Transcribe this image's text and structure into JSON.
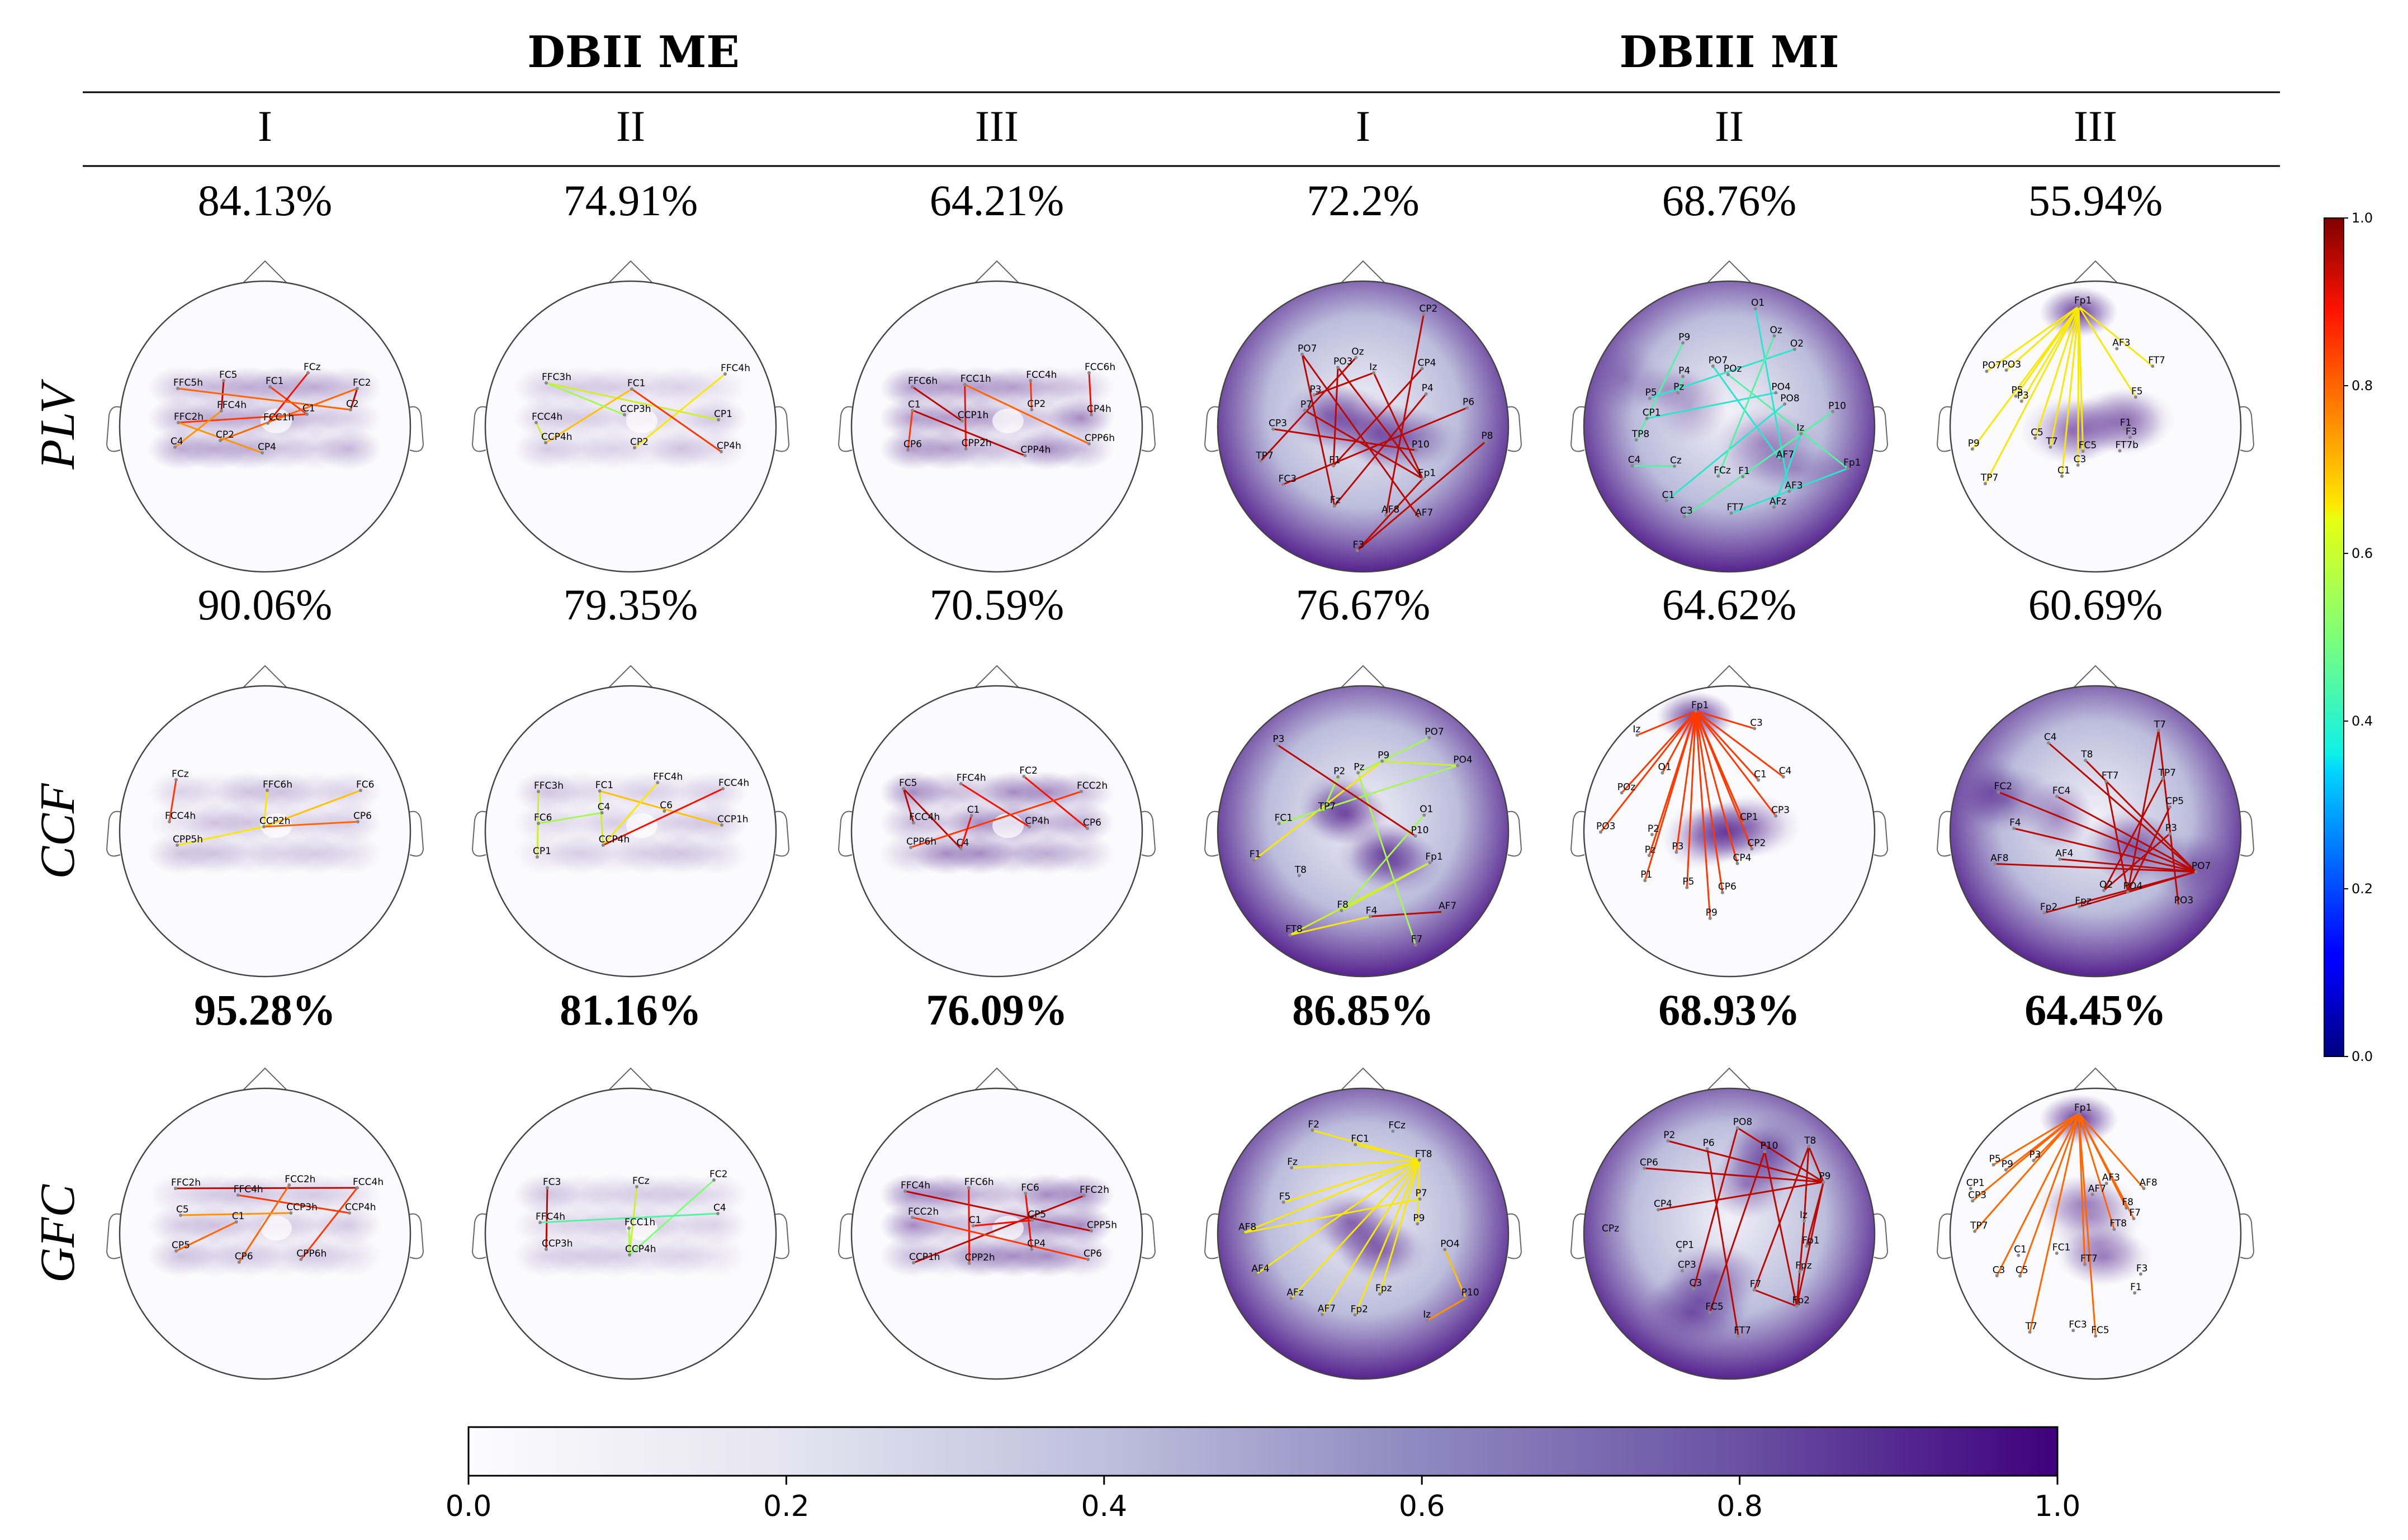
{
  "header": {
    "groups": [
      "DBII ME",
      "DBIII MI"
    ],
    "columns": [
      "I",
      "II",
      "III",
      "I",
      "II",
      "III"
    ]
  },
  "rows": [
    {
      "label": "PLV",
      "accuracies": [
        "84.13%",
        "74.91%",
        "64.21%",
        "72.2%",
        "68.76%",
        "55.94%"
      ],
      "bold": false
    },
    {
      "label": "CCF",
      "accuracies": [
        "90.06%",
        "79.35%",
        "70.59%",
        "76.67%",
        "64.62%",
        "60.69%"
      ],
      "bold": false
    },
    {
      "label": "GFC",
      "accuracies": [
        "95.28%",
        "81.16%",
        "76.09%",
        "86.85%",
        "68.93%",
        "64.45%"
      ],
      "bold": true
    }
  ],
  "colorbar_bottom": {
    "ticks": [
      "0.0",
      "0.2",
      "0.4",
      "0.6",
      "0.8",
      "1.0"
    ],
    "range": [
      0.0,
      1.0
    ],
    "colors": [
      "#fcfbfd",
      "#3f007d"
    ]
  },
  "colorbar_right": {
    "ticks": [
      "0.0",
      "0.2",
      "0.4",
      "0.6",
      "0.8",
      "1.0"
    ],
    "range": [
      0.0,
      1.0
    ],
    "colormap": "jet"
  },
  "panels": [
    {
      "row": 0,
      "col": 0,
      "style": "motor",
      "intensity": 0.75,
      "electrodes": [
        "FFC5h",
        "FC5",
        "FC1",
        "FCz",
        "FC2",
        "FFC2h",
        "FFC4h",
        "FCC1h",
        "C1",
        "C2",
        "C4",
        "CP2",
        "CP4"
      ],
      "edges": [
        [
          1,
          6,
          0.95
        ],
        [
          2,
          8,
          0.85
        ],
        [
          3,
          7,
          0.9
        ],
        [
          4,
          9,
          0.95
        ],
        [
          5,
          8,
          0.85
        ],
        [
          0,
          9,
          0.8
        ],
        [
          6,
          10,
          0.75
        ],
        [
          4,
          11,
          0.8
        ],
        [
          5,
          12,
          0.75
        ]
      ]
    },
    {
      "row": 0,
      "col": 1,
      "style": "motor",
      "intensity": 0.45,
      "electrodes": [
        "FFC3h",
        "FC1",
        "FFC4h",
        "FCC4h",
        "CCP3h",
        "CP1",
        "CCP4h",
        "CP2",
        "CP4h"
      ],
      "edges": [
        [
          0,
          5,
          0.6
        ],
        [
          1,
          6,
          0.7
        ],
        [
          2,
          7,
          0.65
        ],
        [
          3,
          6,
          0.6
        ],
        [
          1,
          8,
          0.85
        ],
        [
          0,
          4,
          0.55
        ]
      ]
    },
    {
      "row": 0,
      "col": 2,
      "style": "motor",
      "intensity": 0.9,
      "electrodes": [
        "FFC6h",
        "FCC1h",
        "FCC4h",
        "FCC6h",
        "C1",
        "CCP1h",
        "CP2",
        "CP4h",
        "CP6",
        "CPP2h",
        "CPP4h",
        "CPP6h"
      ],
      "edges": [
        [
          0,
          5,
          0.95
        ],
        [
          1,
          9,
          0.9
        ],
        [
          2,
          6,
          0.85
        ],
        [
          3,
          7,
          0.9
        ],
        [
          4,
          10,
          0.95
        ],
        [
          1,
          11,
          0.8
        ],
        [
          4,
          8,
          0.85
        ]
      ]
    },
    {
      "row": 0,
      "col": 3,
      "style": "wide",
      "intensity": 0.8,
      "electrodes": [
        "Fp1",
        "AF7",
        "AF8",
        "F3",
        "Fz",
        "F1",
        "FC3",
        "TP7",
        "CP3",
        "P7",
        "P3",
        "PO7",
        "PO3",
        "Oz",
        "Iz",
        "CP2",
        "CP4",
        "P4",
        "P6",
        "P8",
        "P10"
      ],
      "edges": [
        [
          0,
          3,
          0.95
        ],
        [
          0,
          9,
          0.95
        ],
        [
          0,
          12,
          0.95
        ],
        [
          0,
          14,
          0.95
        ],
        [
          5,
          16,
          0.95
        ],
        [
          4,
          17,
          0.95
        ],
        [
          2,
          15,
          0.95
        ],
        [
          7,
          13,
          0.95
        ],
        [
          1,
          11,
          0.95
        ],
        [
          6,
          18,
          0.95
        ],
        [
          3,
          19,
          0.95
        ],
        [
          8,
          20,
          0.95
        ],
        [
          10,
          14,
          0.95
        ],
        [
          5,
          12,
          0.95
        ],
        [
          4,
          11,
          0.95
        ]
      ]
    },
    {
      "row": 0,
      "col": 4,
      "style": "wide",
      "intensity": 0.55,
      "electrodes": [
        "Fp1",
        "AF7",
        "AF3",
        "AFz",
        "F1",
        "FT7",
        "FCz",
        "C3",
        "C1",
        "Cz",
        "C4",
        "TP8",
        "CP1",
        "P5",
        "Pz",
        "P4",
        "P9",
        "PO7",
        "POz",
        "O1",
        "Oz",
        "O2",
        "PO4",
        "PO8",
        "P10",
        "Iz"
      ],
      "edges": [
        [
          0,
          5,
          0.4
        ],
        [
          0,
          18,
          0.45
        ],
        [
          1,
          17,
          0.4
        ],
        [
          2,
          19,
          0.4
        ],
        [
          3,
          25,
          0.4
        ],
        [
          7,
          24,
          0.45
        ],
        [
          8,
          23,
          0.4
        ],
        [
          9,
          10,
          0.45
        ],
        [
          11,
          16,
          0.45
        ],
        [
          12,
          22,
          0.4
        ],
        [
          14,
          15,
          0.45
        ],
        [
          13,
          21,
          0.4
        ],
        [
          6,
          20,
          0.45
        ]
      ]
    },
    {
      "row": 0,
      "col": 5,
      "style": "frontal",
      "intensity": 0.6,
      "electrodes": [
        "Fp1",
        "AF3",
        "FT7",
        "F5",
        "F3",
        "F1",
        "FT7b",
        "FC5",
        "C3",
        "C1",
        "T7",
        "C5",
        "TP7",
        "P9",
        "P5",
        "P3",
        "PO7",
        "PO3"
      ],
      "edges": [
        [
          0,
          2,
          0.65
        ],
        [
          0,
          3,
          0.65
        ],
        [
          0,
          7,
          0.65
        ],
        [
          0,
          10,
          0.65
        ],
        [
          0,
          11,
          0.65
        ],
        [
          0,
          12,
          0.65
        ],
        [
          0,
          13,
          0.65
        ],
        [
          0,
          14,
          0.65
        ],
        [
          0,
          15,
          0.65
        ],
        [
          0,
          16,
          0.65
        ],
        [
          0,
          17,
          0.65
        ],
        [
          0,
          8,
          0.65
        ],
        [
          0,
          9,
          0.65
        ]
      ]
    },
    {
      "row": 1,
      "col": 0,
      "style": "motor",
      "intensity": 0.45,
      "electrodes": [
        "FCz",
        "FFC6h",
        "FC6",
        "FCC4h",
        "CCP2h",
        "CP6",
        "CPP5h"
      ],
      "edges": [
        [
          0,
          3,
          0.85
        ],
        [
          1,
          4,
          0.65
        ],
        [
          2,
          4,
          0.7
        ],
        [
          4,
          5,
          0.8
        ],
        [
          4,
          6,
          0.65
        ]
      ]
    },
    {
      "row": 1,
      "col": 1,
      "style": "motor",
      "intensity": 0.5,
      "electrodes": [
        "FFC3h",
        "FC1",
        "FFC4h",
        "FCC4h",
        "FC6",
        "C4",
        "C6",
        "CCP1h",
        "CP1",
        "CCP4h"
      ],
      "edges": [
        [
          0,
          8,
          0.6
        ],
        [
          1,
          7,
          0.7
        ],
        [
          2,
          9,
          0.65
        ],
        [
          3,
          9,
          0.9
        ],
        [
          4,
          5,
          0.55
        ],
        [
          1,
          9,
          0.6
        ]
      ]
    },
    {
      "row": 1,
      "col": 2,
      "style": "motor",
      "intensity": 0.9,
      "electrodes": [
        "FC5",
        "FFC4h",
        "FC2",
        "FCC2h",
        "FCC4h",
        "C1",
        "CP4h",
        "CP6",
        "CPP6h",
        "C4"
      ],
      "edges": [
        [
          0,
          4,
          0.95
        ],
        [
          0,
          9,
          0.95
        ],
        [
          1,
          6,
          0.9
        ],
        [
          2,
          7,
          0.9
        ],
        [
          3,
          8,
          0.85
        ],
        [
          5,
          9,
          0.9
        ]
      ]
    },
    {
      "row": 1,
      "col": 3,
      "style": "wide",
      "intensity": 0.85,
      "electrodes": [
        "Fp1",
        "AF7",
        "F7",
        "F4",
        "F8",
        "FT8",
        "T8",
        "F1",
        "FC1",
        "TP7",
        "P3",
        "P2",
        "Pz",
        "P9",
        "PO7",
        "PO4",
        "O1",
        "P10"
      ],
      "edges": [
        [
          0,
          5,
          0.6
        ],
        [
          1,
          3,
          0.95
        ],
        [
          2,
          12,
          0.55
        ],
        [
          3,
          5,
          0.65
        ],
        [
          4,
          16,
          0.55
        ],
        [
          7,
          13,
          0.65
        ],
        [
          8,
          15,
          0.55
        ],
        [
          9,
          11,
          0.55
        ],
        [
          10,
          17,
          0.95
        ],
        [
          12,
          14,
          0.55
        ],
        [
          0,
          4,
          0.6
        ],
        [
          13,
          15,
          0.6
        ]
      ]
    },
    {
      "row": 1,
      "col": 4,
      "style": "frontal",
      "intensity": 0.7,
      "electrodes": [
        "Fp1",
        "C3",
        "C1",
        "C4",
        "CP3",
        "CP1",
        "CP2",
        "CP4",
        "CP6",
        "P9",
        "P5",
        "P3",
        "P1",
        "Pz",
        "P2",
        "PO3",
        "POz",
        "O1",
        "Iz"
      ],
      "edges": [
        [
          0,
          1,
          0.85
        ],
        [
          0,
          2,
          0.85
        ],
        [
          0,
          3,
          0.85
        ],
        [
          0,
          4,
          0.85
        ],
        [
          0,
          5,
          0.85
        ],
        [
          0,
          6,
          0.85
        ],
        [
          0,
          7,
          0.85
        ],
        [
          0,
          8,
          0.85
        ],
        [
          0,
          9,
          0.85
        ],
        [
          0,
          10,
          0.85
        ],
        [
          0,
          11,
          0.85
        ],
        [
          0,
          12,
          0.85
        ],
        [
          0,
          13,
          0.85
        ],
        [
          0,
          15,
          0.85
        ],
        [
          0,
          16,
          0.85
        ],
        [
          0,
          17,
          0.85
        ],
        [
          0,
          18,
          0.85
        ]
      ]
    },
    {
      "row": 1,
      "col": 5,
      "style": "wide",
      "intensity": 0.85,
      "electrodes": [
        "Fpz",
        "Fp2",
        "AF4",
        "AF8",
        "F4",
        "FC2",
        "FC4",
        "C4",
        "T8",
        "FT7",
        "T7",
        "TP7",
        "CP5",
        "P3",
        "PO7",
        "PO3",
        "PO4",
        "O2"
      ],
      "edges": [
        [
          14,
          0,
          0.95
        ],
        [
          14,
          1,
          0.95
        ],
        [
          14,
          2,
          0.95
        ],
        [
          14,
          3,
          0.95
        ],
        [
          14,
          4,
          0.95
        ],
        [
          14,
          5,
          0.95
        ],
        [
          14,
          6,
          0.95
        ],
        [
          14,
          7,
          0.95
        ],
        [
          14,
          8,
          0.95
        ],
        [
          9,
          16,
          0.95
        ],
        [
          10,
          15,
          0.95
        ],
        [
          11,
          17,
          0.95
        ],
        [
          12,
          16,
          0.95
        ],
        [
          13,
          17,
          0.95
        ],
        [
          10,
          16,
          0.95
        ]
      ]
    },
    {
      "row": 2,
      "col": 0,
      "style": "motor",
      "intensity": 0.55,
      "electrodes": [
        "FFC2h",
        "FFC4h",
        "FCC2h",
        "FCC4h",
        "C5",
        "C1",
        "CCP3h",
        "CCP4h",
        "CP5",
        "CP6",
        "CPP6h"
      ],
      "edges": [
        [
          0,
          3,
          0.95
        ],
        [
          1,
          7,
          0.85
        ],
        [
          2,
          9,
          0.8
        ],
        [
          4,
          6,
          0.75
        ],
        [
          5,
          8,
          0.8
        ],
        [
          3,
          10,
          0.85
        ]
      ]
    },
    {
      "row": 2,
      "col": 1,
      "style": "motor",
      "intensity": 0.45,
      "electrodes": [
        "FC3",
        "FCz",
        "FC2",
        "FFC4h",
        "FCC1h",
        "C4",
        "CCP3h",
        "CCP4h"
      ],
      "edges": [
        [
          0,
          6,
          0.95
        ],
        [
          1,
          7,
          0.6
        ],
        [
          2,
          7,
          0.5
        ],
        [
          3,
          5,
          0.45
        ],
        [
          4,
          7,
          0.55
        ]
      ]
    },
    {
      "row": 2,
      "col": 2,
      "style": "motor",
      "intensity": 0.9,
      "electrodes": [
        "FFC4h",
        "FFC6h",
        "FC6",
        "FFC2h",
        "FCC2h",
        "C1",
        "CP5",
        "CPP5h",
        "CCP1h",
        "CPP2h",
        "CP4",
        "CP6"
      ],
      "edges": [
        [
          0,
          7,
          0.95
        ],
        [
          1,
          9,
          0.9
        ],
        [
          2,
          10,
          0.9
        ],
        [
          3,
          8,
          0.95
        ],
        [
          4,
          11,
          0.85
        ],
        [
          5,
          6,
          0.9
        ]
      ]
    },
    {
      "row": 2,
      "col": 3,
      "style": "wide",
      "intensity": 0.6,
      "electrodes": [
        "Fpz",
        "Fp2",
        "AF7",
        "AFz",
        "AF4",
        "AF8",
        "F5",
        "Fz",
        "F2",
        "FC1",
        "FCz",
        "FT8",
        "P7",
        "P9",
        "PO4",
        "P10",
        "Iz"
      ],
      "edges": [
        [
          0,
          11,
          0.65
        ],
        [
          1,
          11,
          0.65
        ],
        [
          2,
          11,
          0.65
        ],
        [
          3,
          11,
          0.65
        ],
        [
          4,
          11,
          0.65
        ],
        [
          5,
          11,
          0.65
        ],
        [
          6,
          11,
          0.65
        ],
        [
          7,
          11,
          0.65
        ],
        [
          8,
          11,
          0.65
        ],
        [
          9,
          11,
          0.65
        ],
        [
          13,
          11,
          0.65
        ],
        [
          14,
          15,
          0.7
        ],
        [
          16,
          15,
          0.75
        ],
        [
          12,
          5,
          0.65
        ]
      ]
    },
    {
      "row": 2,
      "col": 4,
      "style": "wide",
      "intensity": 0.95,
      "electrodes": [
        "Fp1",
        "Fpz",
        "Fp2",
        "F7",
        "FT7",
        "FC5",
        "C3",
        "CP3",
        "CP1",
        "CPz",
        "CP4",
        "CP6",
        "P2",
        "P6",
        "PO8",
        "P10",
        "T8",
        "P9",
        "Iz"
      ],
      "edges": [
        [
          17,
          2,
          0.95
        ],
        [
          17,
          16,
          0.95
        ],
        [
          17,
          11,
          0.95
        ],
        [
          17,
          10,
          0.95
        ],
        [
          17,
          12,
          0.95
        ],
        [
          17,
          14,
          0.95
        ],
        [
          2,
          18,
          0.95
        ],
        [
          2,
          15,
          0.95
        ],
        [
          2,
          3,
          0.95
        ],
        [
          3,
          16,
          0.95
        ],
        [
          4,
          13,
          0.95
        ],
        [
          5,
          15,
          0.95
        ],
        [
          6,
          14,
          0.95
        ],
        [
          18,
          16,
          0.95
        ],
        [
          0,
          17,
          0.95
        ]
      ]
    },
    {
      "row": 2,
      "col": 5,
      "style": "frontal",
      "intensity": 0.55,
      "electrodes": [
        "Fp1",
        "AF7",
        "AF3",
        "AF8",
        "F8",
        "FT8",
        "F7",
        "F3",
        "F1",
        "FT7",
        "FC5",
        "FC3",
        "FC1",
        "T7",
        "C5",
        "C3",
        "C1",
        "TP7",
        "CP3",
        "CP1",
        "P9",
        "P5",
        "P3"
      ],
      "edges": [
        [
          0,
          3,
          0.8
        ],
        [
          0,
          4,
          0.8
        ],
        [
          0,
          5,
          0.8
        ],
        [
          0,
          6,
          0.8
        ],
        [
          0,
          9,
          0.8
        ],
        [
          0,
          10,
          0.8
        ],
        [
          0,
          13,
          0.8
        ],
        [
          0,
          14,
          0.8
        ],
        [
          0,
          17,
          0.8
        ],
        [
          0,
          20,
          0.8
        ],
        [
          0,
          21,
          0.8
        ],
        [
          0,
          22,
          0.8
        ],
        [
          0,
          18,
          0.8
        ],
        [
          0,
          15,
          0.8
        ]
      ]
    }
  ]
}
